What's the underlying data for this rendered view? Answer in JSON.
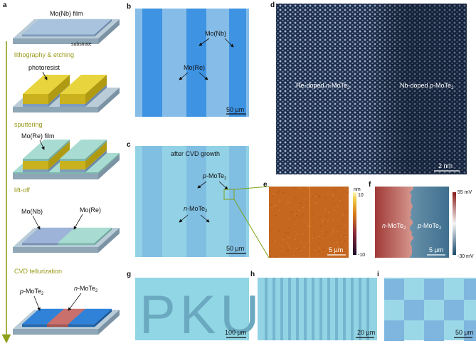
{
  "panels": [
    "a",
    "b",
    "c",
    "d",
    "e",
    "f",
    "g",
    "h",
    "i"
  ],
  "a": {
    "film_nb": "Mo(Nb) film",
    "substrate": "substrate",
    "photoresist": "photoresist",
    "film_re": "Mo(Re) film",
    "nb": "Mo(Nb)",
    "re": "Mo(Re)",
    "p": {
      "prefix": "p",
      "text": "-MoTe",
      "sub": "2"
    },
    "n": {
      "prefix": "n",
      "text": "-MoTe",
      "sub": "2"
    },
    "steps": [
      "lithography & etching",
      "sputtering",
      "lift-off",
      "CVD tellurization"
    ]
  },
  "b": {
    "nb": "Mo(Nb)",
    "re": "Mo(Re)",
    "scale": "50 µm"
  },
  "c": {
    "note": "after CVD growth",
    "p": {
      "prefix": "p",
      "text": "-MoTe",
      "sub": "2"
    },
    "n": {
      "prefix": "n",
      "text": "-MoTe",
      "sub": "2"
    },
    "scale": "50 µm"
  },
  "d": {
    "left": {
      "lead": "Re-doped ",
      "prefix": "n",
      "text": "-MoTe",
      "sub": "2"
    },
    "right": {
      "lead": "Nb-doped ",
      "prefix": "p",
      "text": "-MoTe",
      "sub": "2"
    },
    "scale": "2 nm"
  },
  "e": {
    "unit": "nm",
    "max": "10",
    "min": "-10",
    "scale": "5 µm"
  },
  "f": {
    "max": "55 mV",
    "min": "-30 mV",
    "left": {
      "prefix": "n",
      "text": "-MoTe",
      "sub": "2"
    },
    "right": {
      "prefix": "p",
      "text": "-MoTe",
      "sub": "2"
    },
    "scale": "5 µm"
  },
  "g": {
    "pattern": "PKU",
    "scale": "100 µm"
  },
  "h": {
    "scale": "20 µm"
  },
  "i": {
    "scale": "50 µm"
  }
}
